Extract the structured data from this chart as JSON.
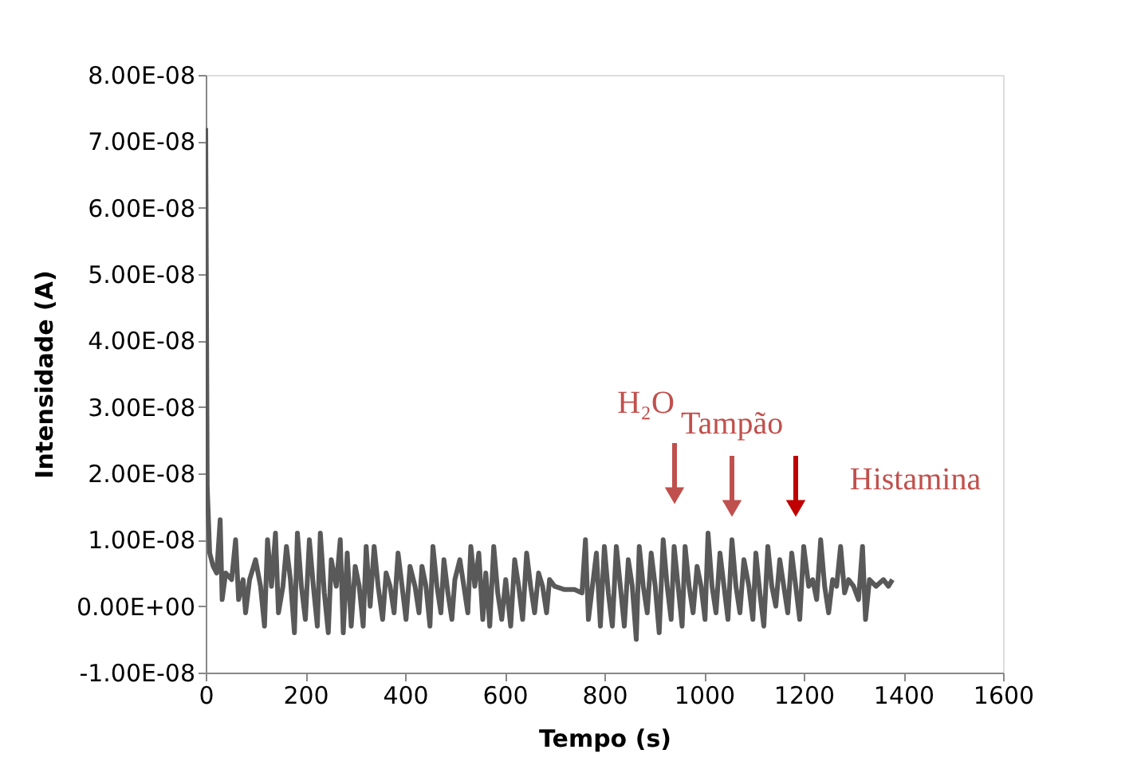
{
  "chart_data": {
    "type": "line",
    "xlabel": "Tempo (s)",
    "ylabel": "Intensidade (A)",
    "xlim": [
      0,
      1600
    ],
    "xticks": [
      0,
      200,
      400,
      600,
      800,
      1000,
      1200,
      1400,
      1600
    ],
    "ylim": [
      -1e-08,
      8e-08
    ],
    "yticks": [
      {
        "value": -1e-08,
        "label": "-1.00E-08"
      },
      {
        "value": 0,
        "label": "0.00E+00"
      },
      {
        "value": 1e-08,
        "label": "1.00E-08"
      },
      {
        "value": 2e-08,
        "label": "2.00E-08"
      },
      {
        "value": 3e-08,
        "label": "3.00E-08"
      },
      {
        "value": 4e-08,
        "label": "4.00E-08"
      },
      {
        "value": 5e-08,
        "label": "5.00E-08"
      },
      {
        "value": 6e-08,
        "label": "6.00E-08"
      },
      {
        "value": 7e-08,
        "label": "7.00E-08"
      },
      {
        "value": 8e-08,
        "label": "8.00E-08"
      }
    ],
    "grid": false,
    "marker": "none",
    "line_style": "solid",
    "series": [
      {
        "color": "#595959",
        "x": [
          0,
          3,
          8,
          15,
          22,
          29,
          33,
          40,
          52,
          60,
          66,
          75,
          80,
          88,
          100,
          110,
          118,
          124,
          132,
          140,
          146,
          155,
          162,
          170,
          178,
          184,
          192,
          200,
          208,
          216,
          224,
          230,
          238,
          246,
          252,
          262,
          270,
          276,
          284,
          292,
          300,
          308,
          316,
          322,
          330,
          338,
          346,
          355,
          362,
          370,
          378,
          386,
          394,
          402,
          410,
          420,
          428,
          434,
          442,
          450,
          456,
          464,
          472,
          478,
          486,
          494,
          500,
          510,
          518,
          526,
          532,
          540,
          548,
          556,
          562,
          570,
          578,
          586,
          594,
          602,
          612,
          620,
          628,
          636,
          644,
          652,
          660,
          668,
          676,
          684,
          690,
          700,
          720,
          740,
          755,
          762,
          768,
          776,
          784,
          792,
          800,
          808,
          816,
          824,
          832,
          840,
          848,
          856,
          864,
          870,
          878,
          886,
          894,
          902,
          910,
          918,
          926,
          934,
          940,
          948,
          956,
          962,
          970,
          978,
          986,
          994,
          1002,
          1008,
          1016,
          1024,
          1032,
          1040,
          1048,
          1056,
          1064,
          1072,
          1080,
          1090,
          1098,
          1104,
          1112,
          1120,
          1128,
          1136,
          1144,
          1152,
          1160,
          1168,
          1176,
          1184,
          1192,
          1200,
          1210,
          1218,
          1226,
          1234,
          1242,
          1250,
          1258,
          1266,
          1274,
          1282,
          1290,
          1300,
          1310,
          1318,
          1324,
          1332,
          1345,
          1360,
          1370,
          1378
        ],
        "values": [
          7.2e-08,
          1.8e-08,
          8e-09,
          6e-09,
          5e-09,
          1.3e-08,
          1e-09,
          5e-09,
          4e-09,
          1e-08,
          1e-09,
          4e-09,
          -1e-09,
          4e-09,
          7e-09,
          3e-09,
          -3e-09,
          1e-08,
          3e-09,
          1.1e-08,
          -1e-09,
          3e-09,
          9e-09,
          4e-09,
          -4e-09,
          1.1e-08,
          3e-09,
          -2e-09,
          1e-08,
          3e-09,
          -3e-09,
          1.1e-08,
          2e-09,
          -4e-09,
          7e-09,
          3e-09,
          1e-08,
          -4e-09,
          8e-09,
          -3e-09,
          6e-09,
          3e-09,
          -3e-09,
          9e-09,
          0,
          9e-09,
          3e-09,
          -2e-09,
          5e-09,
          3e-09,
          -1e-09,
          8e-09,
          3e-09,
          -2e-09,
          6e-09,
          3e-09,
          -1e-09,
          6e-09,
          3e-09,
          -3e-09,
          9e-09,
          3e-09,
          -1e-09,
          7e-09,
          2e-09,
          -2e-09,
          4e-09,
          7e-09,
          3e-09,
          -1e-09,
          9e-09,
          3e-09,
          8e-09,
          -2e-09,
          5e-09,
          -3e-09,
          9e-09,
          2e-09,
          -2e-09,
          4e-09,
          -3e-09,
          7e-09,
          3e-09,
          -2e-09,
          8e-09,
          3e-09,
          -1e-09,
          5e-09,
          3e-09,
          -1e-09,
          4e-09,
          3e-09,
          2.5e-09,
          2.5e-09,
          2e-09,
          1e-08,
          -2e-09,
          3e-09,
          8e-09,
          -3e-09,
          9e-09,
          2e-09,
          -3e-09,
          9e-09,
          3e-09,
          -3e-09,
          7e-09,
          3e-09,
          -5e-09,
          9e-09,
          3e-09,
          -1e-09,
          8e-09,
          3e-09,
          -4e-09,
          1e-08,
          3e-09,
          -2e-09,
          9e-09,
          3e-09,
          -3e-09,
          9e-09,
          3e-09,
          -1e-09,
          6e-09,
          3e-09,
          -2e-09,
          1.1e-08,
          3e-09,
          -1e-09,
          8e-09,
          3e-09,
          -2e-09,
          1e-08,
          3e-09,
          -1e-09,
          7e-09,
          3e-09,
          -2e-09,
          8e-09,
          2e-09,
          -3e-09,
          9e-09,
          3e-09,
          0,
          7e-09,
          3e-09,
          -1e-09,
          8e-09,
          3e-09,
          -2e-09,
          9e-09,
          3e-09,
          4e-09,
          1e-09,
          1e-08,
          3e-09,
          -1e-09,
          4e-09,
          3e-09,
          9e-09,
          2e-09,
          4e-09,
          3e-09,
          1e-09,
          9e-09,
          -2e-09,
          4e-09,
          3e-09,
          4e-09,
          3e-09,
          4e-09
        ]
      }
    ],
    "annotations": [
      "H₂O",
      "Tampão",
      "Histamina"
    ]
  }
}
